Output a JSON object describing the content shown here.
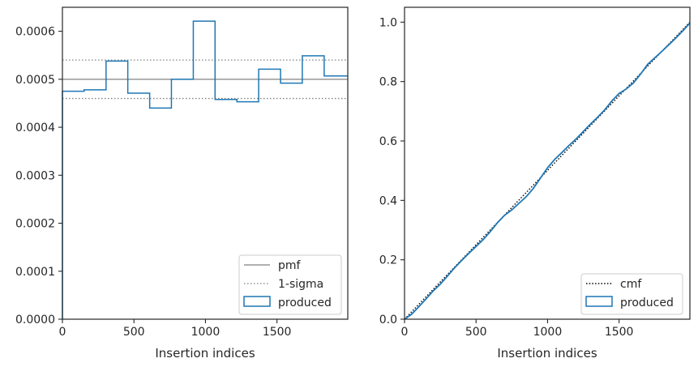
{
  "chart_data": [
    {
      "type": "histogram-step",
      "xlabel": "Insertion indices",
      "ylabel": "",
      "xlim": [
        0,
        1995
      ],
      "ylim": [
        0,
        0.00065
      ],
      "xticks": [
        0,
        500,
        1000,
        1500
      ],
      "xtick_labels": [
        "0",
        "500",
        "1000",
        "1500"
      ],
      "yticks": [
        0,
        0.0001,
        0.0002,
        0.0003,
        0.0004,
        0.0005,
        0.0006
      ],
      "ytick_labels": [
        "0.0000",
        "0.0001",
        "0.0002",
        "0.0003",
        "0.0004",
        "0.0005",
        "0.0006"
      ],
      "pmf": 0.0005,
      "sigma_band": [
        0.00046,
        0.00054
      ],
      "bin_edges": [
        0,
        152,
        305,
        457,
        610,
        762,
        915,
        1067,
        1220,
        1372,
        1525,
        1677,
        1830,
        1995
      ],
      "values": [
        0.000475,
        0.000478,
        0.000538,
        0.000471,
        0.00044,
        0.0005,
        0.000621,
        0.000458,
        0.000453,
        0.000521,
        0.000492,
        0.000549,
        0.000507
      ],
      "legend": [
        "pmf",
        "1-sigma",
        "produced"
      ],
      "legend_position": "lower-right",
      "colors": {
        "produced": "#1f77b4",
        "pmf": "#808080",
        "sigma": "#808080"
      }
    },
    {
      "type": "line",
      "xlabel": "Insertion indices",
      "ylabel": "",
      "xlim": [
        0,
        1995
      ],
      "ylim": [
        0,
        1.05
      ],
      "xticks": [
        0,
        500,
        1000,
        1500
      ],
      "xtick_labels": [
        "0",
        "500",
        "1000",
        "1500"
      ],
      "yticks": [
        0,
        0.2,
        0.4,
        0.6,
        0.8,
        1.0
      ],
      "ytick_labels": [
        "0.0",
        "0.2",
        "0.4",
        "0.6",
        "0.8",
        "1.0"
      ],
      "cmf": {
        "x": [
          0,
          1995
        ],
        "y": [
          0,
          1.0
        ]
      },
      "produced": {
        "x": [
          0,
          50,
          100,
          150,
          200,
          250,
          300,
          350,
          400,
          450,
          500,
          550,
          600,
          650,
          700,
          750,
          800,
          850,
          900,
          950,
          1000,
          1050,
          1100,
          1150,
          1200,
          1250,
          1300,
          1350,
          1400,
          1450,
          1500,
          1550,
          1600,
          1650,
          1700,
          1750,
          1800,
          1850,
          1900,
          1950,
          1995
        ],
        "y": [
          0,
          0.017,
          0.042,
          0.068,
          0.095,
          0.118,
          0.145,
          0.173,
          0.198,
          0.222,
          0.245,
          0.268,
          0.295,
          0.325,
          0.35,
          0.368,
          0.39,
          0.412,
          0.44,
          0.475,
          0.51,
          0.538,
          0.561,
          0.585,
          0.607,
          0.632,
          0.657,
          0.68,
          0.705,
          0.735,
          0.76,
          0.775,
          0.795,
          0.825,
          0.858,
          0.88,
          0.902,
          0.925,
          0.948,
          0.973,
          0.997
        ]
      },
      "legend": [
        "cmf",
        "produced"
      ],
      "legend_position": "lower-right",
      "colors": {
        "produced": "#1f77b4",
        "cmf": "#000000"
      }
    }
  ]
}
